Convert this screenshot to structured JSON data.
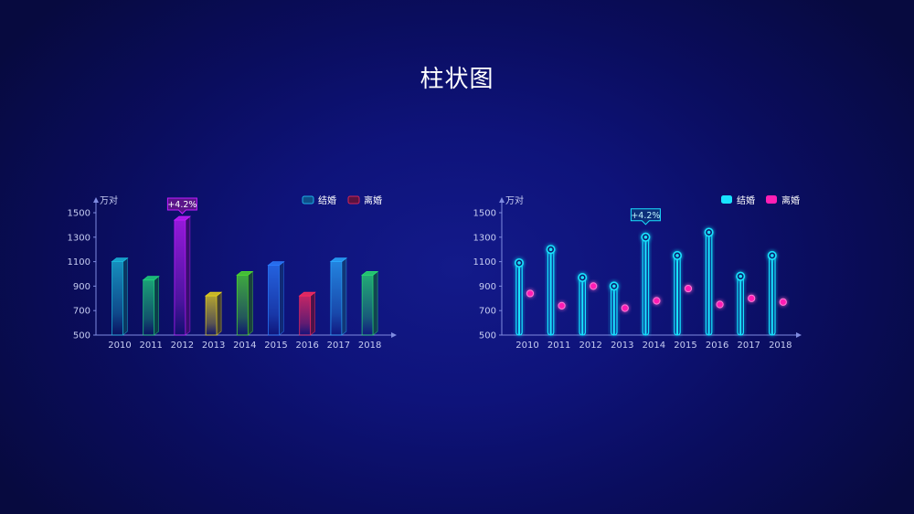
{
  "title": "柱状图",
  "colors": {
    "marriage": "#19e3ff",
    "divorce": "#ff1fb4",
    "left_marriage_legend": "#1fb0e6",
    "left_divorce_legend": "#d3265a"
  },
  "chart_data": [
    {
      "type": "bar",
      "title": "",
      "ylabel": "万对",
      "ylim": [
        500,
        1500
      ],
      "yticks": [
        "500",
        "700",
        "900",
        "1100",
        "1300",
        "1500"
      ],
      "categories": [
        "2010",
        "2011",
        "2012",
        "2013",
        "2014",
        "2015",
        "2016",
        "2017",
        "2018"
      ],
      "legend": [
        "结婚",
        "离婚"
      ],
      "legend_position": "top-right",
      "bar_colors": [
        "#19b9dc",
        "#1fd17c",
        "#c21cff",
        "#e8d21c",
        "#4ed92e",
        "#2b7cff",
        "#ff2b5e",
        "#29a8ff",
        "#28dc70"
      ],
      "series": [
        {
          "name": "结婚",
          "values": [
            1100,
            950,
            1440,
            820,
            990,
            1070,
            820,
            1100,
            990
          ]
        }
      ],
      "annotation": {
        "category": "2012",
        "text": "+4.2%"
      }
    },
    {
      "type": "bar",
      "title": "",
      "ylabel": "万对",
      "ylim": [
        500,
        1500
      ],
      "yticks": [
        "500",
        "700",
        "900",
        "1100",
        "1300",
        "1500"
      ],
      "categories": [
        "2010",
        "2011",
        "2012",
        "2013",
        "2014",
        "2015",
        "2016",
        "2017",
        "2018"
      ],
      "legend": [
        "结婚",
        "离婚"
      ],
      "legend_position": "top-right",
      "series": [
        {
          "name": "结婚",
          "values": [
            1090,
            1200,
            970,
            900,
            1300,
            1150,
            1340,
            980,
            1150
          ]
        },
        {
          "name": "离婚",
          "values": [
            840,
            740,
            900,
            720,
            780,
            880,
            750,
            800,
            770
          ]
        }
      ],
      "annotation": {
        "category": "2014",
        "text": "+4.2%"
      }
    }
  ]
}
